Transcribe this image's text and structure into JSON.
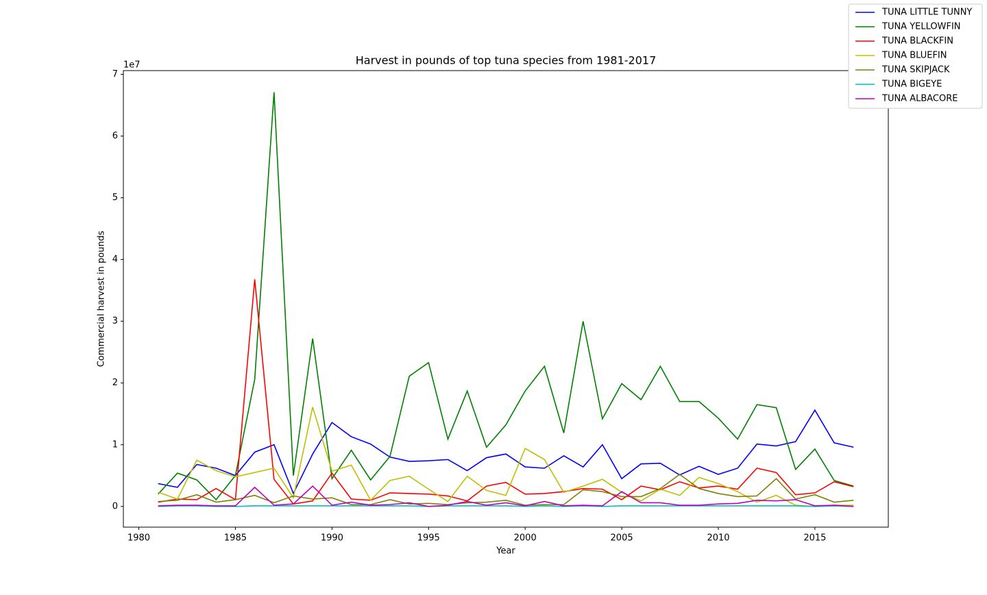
{
  "chart_data": {
    "type": "line",
    "title": "Harvest in pounds of top tuna species from 1981-2017",
    "x_label": "Year",
    "y_label": "Commercial harvest in pounds",
    "y_offset_label": "1e7",
    "x": [
      1981,
      1982,
      1983,
      1984,
      1985,
      1986,
      1987,
      1988,
      1989,
      1990,
      1991,
      1992,
      1993,
      1994,
      1995,
      1996,
      1997,
      1998,
      1999,
      2000,
      2001,
      2002,
      2003,
      2004,
      2005,
      2006,
      2007,
      2008,
      2009,
      2010,
      2011,
      2012,
      2013,
      2014,
      2015,
      2016,
      2017
    ],
    "series": [
      {
        "name": "TUNA LITTLE TUNNY",
        "color": "#0000ff",
        "values": [
          0.37,
          0.31,
          0.68,
          0.62,
          0.5,
          0.88,
          1.0,
          0.21,
          0.85,
          1.36,
          1.13,
          1.01,
          0.8,
          0.73,
          0.74,
          0.76,
          0.58,
          0.79,
          0.85,
          0.64,
          0.62,
          0.82,
          0.64,
          1.0,
          0.45,
          0.69,
          0.7,
          0.51,
          0.65,
          0.52,
          0.62,
          1.01,
          0.98,
          1.05,
          1.56,
          1.03,
          0.96
        ]
      },
      {
        "name": "TUNA YELLOWFIN",
        "color": "#008000",
        "values": [
          0.2,
          0.54,
          0.43,
          0.11,
          0.5,
          2.06,
          6.71,
          0.5,
          2.72,
          0.45,
          0.91,
          0.43,
          0.81,
          2.11,
          2.33,
          1.09,
          1.87,
          0.96,
          1.32,
          1.87,
          2.27,
          1.19,
          3.0,
          1.42,
          1.99,
          1.73,
          2.27,
          1.7,
          1.7,
          1.43,
          1.09,
          1.65,
          1.6,
          0.6,
          0.93,
          0.42,
          0.33
        ]
      },
      {
        "name": "TUNA BLACKFIN",
        "color": "#ff0000",
        "values": [
          0.07,
          0.12,
          0.11,
          0.29,
          0.11,
          3.68,
          0.44,
          0.04,
          0.09,
          0.54,
          0.12,
          0.1,
          0.22,
          0.21,
          0.2,
          0.17,
          0.09,
          0.33,
          0.39,
          0.2,
          0.21,
          0.24,
          0.29,
          0.28,
          0.11,
          0.33,
          0.27,
          0.4,
          0.3,
          0.33,
          0.28,
          0.62,
          0.55,
          0.19,
          0.22,
          0.4,
          0.32
        ]
      },
      {
        "name": "TUNA BLUEFIN",
        "color": "#bfbf00",
        "values": [
          0.23,
          0.12,
          0.75,
          0.58,
          0.48,
          0.55,
          0.62,
          0.14,
          1.61,
          0.57,
          0.67,
          0.1,
          0.42,
          0.49,
          0.28,
          0.08,
          0.49,
          0.26,
          0.18,
          0.94,
          0.76,
          0.23,
          0.33,
          0.44,
          0.23,
          0.09,
          0.28,
          0.18,
          0.47,
          0.37,
          0.24,
          0.07,
          0.18,
          0.02,
          0.0,
          0.02,
          0.02
        ]
      },
      {
        "name": "TUNA SKIPJACK",
        "color": "#808000",
        "values": [
          0.08,
          0.1,
          0.19,
          0.07,
          0.11,
          0.18,
          0.06,
          0.17,
          0.12,
          0.14,
          0.03,
          0.03,
          0.11,
          0.04,
          0.05,
          0.03,
          0.06,
          0.07,
          0.1,
          0.02,
          0.03,
          0.03,
          0.27,
          0.24,
          0.16,
          0.16,
          0.29,
          0.52,
          0.29,
          0.21,
          0.16,
          0.17,
          0.45,
          0.12,
          0.19,
          0.07,
          0.1
        ]
      },
      {
        "name": "TUNA BIGEYE",
        "color": "#00bfbf",
        "values": [
          0.0,
          0.01,
          0.01,
          0.0,
          0.0,
          0.01,
          0.01,
          0.01,
          0.01,
          0.01,
          0.01,
          0.01,
          0.01,
          0.01,
          0.0,
          0.01,
          0.01,
          0.01,
          0.01,
          0.0,
          0.01,
          0.0,
          0.01,
          0.0,
          0.01,
          0.01,
          0.01,
          0.01,
          0.01,
          0.01,
          0.01,
          0.01,
          0.01,
          0.01,
          0.0,
          0.01,
          0.0
        ]
      },
      {
        "name": "TUNA ALBACORE",
        "color": "#bf00bf",
        "values": [
          0.01,
          0.02,
          0.02,
          0.01,
          0.01,
          0.31,
          0.02,
          0.04,
          0.33,
          0.02,
          0.07,
          0.02,
          0.03,
          0.06,
          0.0,
          0.02,
          0.08,
          0.02,
          0.06,
          0.01,
          0.08,
          0.01,
          0.02,
          0.01,
          0.24,
          0.06,
          0.06,
          0.02,
          0.02,
          0.04,
          0.05,
          0.1,
          0.09,
          0.11,
          0.01,
          0.02,
          0.0
        ]
      }
    ],
    "xlim": [
      1979.2,
      2018.8
    ],
    "xticks": [
      1980,
      1985,
      1990,
      1995,
      2000,
      2005,
      2010,
      2015
    ],
    "ylim": [
      -0.335,
      7.06
    ],
    "yticks": [
      0,
      1,
      2,
      3,
      4,
      5,
      6,
      7
    ],
    "grid": false,
    "legend_position": "upper right"
  }
}
